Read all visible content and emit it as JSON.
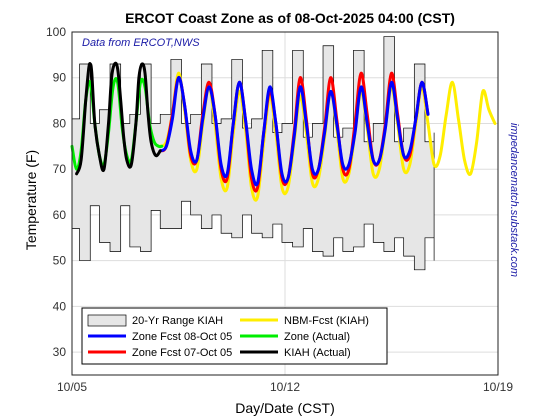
{
  "chart_data": {
    "type": "line",
    "title": "ERCOT Coast Zone as of 08-Oct-2025 04:00 (CST)",
    "xlabel": "Day/Date (CST)",
    "ylabel": "Temperature (F)",
    "annotation": "Data from ERCOT,NWS",
    "side_note": "impedancematch.substack.com",
    "xlim": [
      0,
      14
    ],
    "ylim": [
      25,
      100
    ],
    "x_ticks": [
      0,
      7,
      14
    ],
    "x_tick_labels": [
      "10/05",
      "10/12",
      "10/19"
    ],
    "y_ticks": [
      30,
      40,
      50,
      60,
      70,
      80,
      90,
      100
    ],
    "grid": true,
    "legend_position": "bottom-left",
    "series": [
      {
        "name": "20-Yr Range KIAH",
        "kind": "band",
        "color": "#e6e6e6",
        "x": [
          0,
          0.25,
          0.6,
          0.9,
          1.25,
          1.6,
          1.9,
          2.25,
          2.6,
          2.9,
          3.25,
          3.6,
          3.9,
          4.25,
          4.6,
          4.9,
          5.25,
          5.6,
          5.9,
          6.25,
          6.6,
          6.9,
          7.25,
          7.6,
          7.9,
          8.25,
          8.6,
          8.9,
          9.25,
          9.6,
          9.9,
          10.25,
          10.6,
          10.9,
          11.25,
          11.6,
          11.9
        ],
        "low": [
          57,
          50,
          62,
          54,
          52,
          62,
          53,
          52,
          61,
          57,
          57,
          63,
          60,
          57,
          60,
          56,
          55,
          60,
          56,
          55,
          58,
          54,
          53,
          57,
          52,
          51,
          55,
          52,
          53,
          58,
          54,
          52,
          55,
          51,
          48,
          55,
          50
        ],
        "high": [
          81,
          93,
          80,
          83,
          93,
          80,
          82,
          93,
          80,
          82,
          94,
          80,
          82,
          93,
          80,
          81,
          94,
          79,
          81,
          96,
          78,
          80,
          96,
          77,
          80,
          97,
          77,
          79,
          96,
          76,
          80,
          99,
          76,
          79,
          93,
          76,
          78
        ]
      },
      {
        "name": "Zone Fcst 08-Oct 05",
        "color": "#0000ff",
        "x": [
          2.9,
          3.1,
          3.3,
          3.5,
          3.7,
          3.9,
          4.1,
          4.3,
          4.5,
          4.7,
          4.9,
          5.1,
          5.3,
          5.5,
          5.7,
          5.9,
          6.1,
          6.3,
          6.5,
          6.7,
          6.9,
          7.1,
          7.3,
          7.5,
          7.7,
          7.9,
          8.1,
          8.3,
          8.5,
          8.7,
          8.9,
          9.1,
          9.3,
          9.5,
          9.7,
          9.9,
          10.1,
          10.3,
          10.5,
          10.7,
          10.9,
          11.1,
          11.3,
          11.5,
          11.7
        ],
        "y": [
          74,
          75,
          81,
          90,
          84,
          74,
          72,
          81,
          88,
          82,
          71,
          69,
          80,
          89,
          81,
          70,
          67,
          78,
          88,
          80,
          69,
          68,
          77,
          88,
          80,
          70,
          70,
          78,
          87,
          80,
          71,
          71,
          78,
          88,
          80,
          72,
          72,
          79,
          89,
          81,
          73,
          74,
          81,
          89,
          82
        ]
      },
      {
        "name": "Zone Fcst 07-Oct 05",
        "color": "#ff0000",
        "x": [
          2.9,
          3.1,
          3.3,
          3.5,
          3.7,
          3.9,
          4.1,
          4.3,
          4.5,
          4.7,
          4.9,
          5.1,
          5.3,
          5.5,
          5.7,
          5.9,
          6.1,
          6.3,
          6.5,
          6.7,
          6.9,
          7.1,
          7.3,
          7.5,
          7.7,
          7.9,
          8.1,
          8.3,
          8.5,
          8.7,
          8.9,
          9.1,
          9.3,
          9.5,
          9.7,
          9.9,
          10.1,
          10.3,
          10.5,
          10.7,
          10.9,
          11.1,
          11.3,
          11.5,
          11.7
        ],
        "y": [
          74,
          75,
          82,
          90,
          84,
          73,
          72,
          82,
          89,
          82,
          70,
          68,
          80,
          89,
          81,
          68,
          66,
          78,
          87,
          80,
          68,
          68,
          78,
          90,
          81,
          69,
          70,
          79,
          90,
          81,
          70,
          70,
          80,
          91,
          82,
          72,
          72,
          80,
          91,
          82,
          73,
          73,
          81,
          89,
          82
        ]
      },
      {
        "name": "NBM-Fcst (KIAH)",
        "color": "#ffee00",
        "x": [
          2.9,
          3.1,
          3.3,
          3.5,
          3.7,
          3.9,
          4.1,
          4.3,
          4.5,
          4.7,
          4.9,
          5.1,
          5.3,
          5.5,
          5.7,
          5.9,
          6.1,
          6.3,
          6.5,
          6.7,
          6.9,
          7.1,
          7.3,
          7.5,
          7.7,
          7.9,
          8.1,
          8.3,
          8.5,
          8.7,
          8.9,
          9.1,
          9.3,
          9.5,
          9.7,
          9.9,
          10.1,
          10.3,
          10.5,
          10.7,
          10.9,
          11.1,
          11.3,
          11.5,
          11.7,
          11.9,
          12.1,
          12.3,
          12.5,
          12.7,
          12.9,
          13.1,
          13.3,
          13.5,
          13.7,
          13.9
        ],
        "y": [
          75,
          76,
          82,
          91,
          83,
          72,
          70,
          80,
          88,
          80,
          68,
          66,
          78,
          87,
          79,
          66,
          64,
          76,
          86,
          78,
          66,
          66,
          76,
          86,
          78,
          67,
          68,
          77,
          87,
          79,
          68,
          69,
          78,
          87,
          79,
          69,
          70,
          79,
          88,
          80,
          70,
          71,
          80,
          88,
          80,
          71,
          73,
          82,
          89,
          81,
          72,
          69,
          76,
          87,
          83,
          80
        ]
      },
      {
        "name": "Zone (Actual)",
        "color": "#00ee00",
        "x": [
          0,
          0.15,
          0.3,
          0.45,
          0.6,
          0.75,
          0.9,
          1.05,
          1.2,
          1.35,
          1.5,
          1.65,
          1.8,
          1.95,
          2.1,
          2.25,
          2.4,
          2.55,
          2.7,
          2.85,
          2.95
        ],
        "y": [
          75,
          70,
          74,
          85,
          89,
          80,
          73,
          71,
          78,
          88,
          89,
          79,
          73,
          72,
          80,
          89,
          88,
          80,
          76,
          75,
          75
        ]
      },
      {
        "name": "KIAH (Actual)",
        "color": "#000000",
        "x": [
          0.15,
          0.3,
          0.45,
          0.55,
          0.6,
          0.65,
          0.75,
          0.9,
          1.05,
          1.2,
          1.3,
          1.4,
          1.5,
          1.6,
          1.7,
          1.8,
          1.95,
          2.1,
          2.2,
          2.3,
          2.4,
          2.5,
          2.6,
          2.75,
          2.9
        ],
        "y": [
          69,
          72,
          85,
          92,
          93,
          91,
          80,
          73,
          70,
          80,
          90,
          93,
          92,
          85,
          77,
          72,
          71,
          80,
          90,
          93,
          91,
          82,
          76,
          73,
          74
        ]
      }
    ]
  }
}
